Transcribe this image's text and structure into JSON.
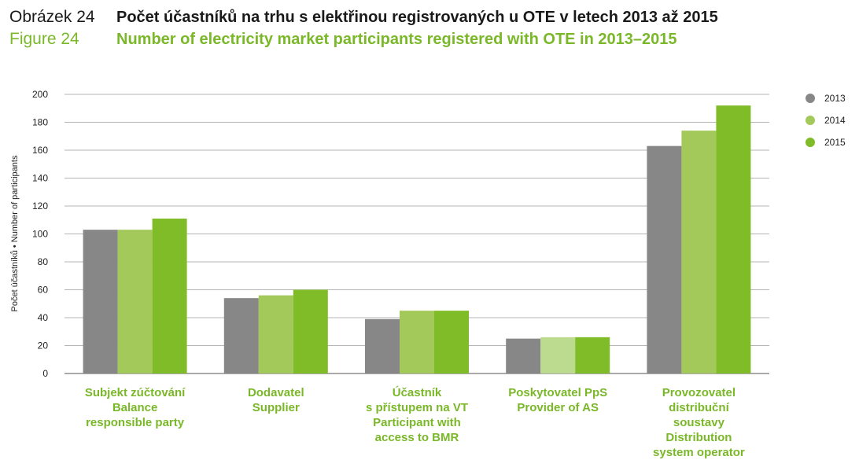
{
  "header": {
    "cz_label": "Obrázek 24",
    "cz_title": "Počet účastníků na trhu s elektřinou registrovaných u OTE v letech 2013 až 2015",
    "en_label": "Figure 24",
    "en_title": "Number of electricity market participants registered with OTE in 2013–2015"
  },
  "chart_data": {
    "type": "bar",
    "ylabel": "Počet účastníků • Number of participants",
    "ylim": [
      0,
      200
    ],
    "yticks": [
      0,
      20,
      40,
      60,
      80,
      100,
      120,
      140,
      160,
      180,
      200
    ],
    "grid": true,
    "legend_position": "top-right",
    "categories": [
      [
        "Subjekt zúčtování",
        "Balance",
        "responsible party"
      ],
      [
        "Dodavatel",
        "Supplier"
      ],
      [
        "Účastník",
        "s přístupem na VT",
        "Participant with",
        "access to BMR"
      ],
      [
        "Poskytovatel PpS",
        "Provider of AS"
      ],
      [
        "Provozovatel",
        "distribuční",
        "soustavy",
        "Distribution",
        "system operator"
      ]
    ],
    "series": [
      {
        "name": "2013",
        "color": "#878787",
        "values": [
          103,
          54,
          39,
          25,
          163
        ]
      },
      {
        "name": "2014",
        "color": "#a3c95a",
        "values": [
          103,
          56,
          45,
          26,
          174
        ]
      },
      {
        "name": "2015",
        "color": "#80bc28",
        "values": [
          111,
          60,
          45,
          26,
          192
        ]
      }
    ],
    "highlight": {
      "series": 1,
      "category": 3,
      "color": "#bddb8e"
    }
  }
}
